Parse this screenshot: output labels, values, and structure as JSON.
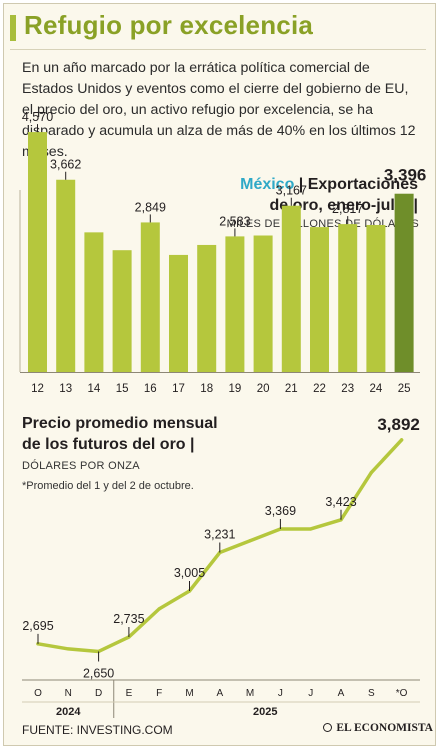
{
  "title": "Refugio por excelencia",
  "intro": "En un año marcado por la errática política comercial de Estados Unidos y eventos como el cierre del gobierno de EU, el precio del oro, un activo refugio por excelencia, se ha disparado y acumula un alza de más de 40% en los últimos 12 meses.",
  "chart1": {
    "heading_country": "México",
    "heading_sep": " | ",
    "heading_rest1": "Exportaciones",
    "heading_rest2": "de oro, enero-julio |",
    "unit": "MILES DE MILLONES DE DÓLARES"
  },
  "chart2": {
    "heading_line1": "Precio promedio mensual",
    "heading_line2": "de los futuros del oro |",
    "unit": "DÓLARES POR ONZA",
    "note": "*Promedio del 1 y del 2 de octubre."
  },
  "source": "FUENTE: INVESTING.COM",
  "brand": "EL ECONOMISTA",
  "colors": {
    "bar": "#b5c73d",
    "bar_highlight": "#6f8e2a",
    "line": "#b5c73d",
    "title": "#8aa126",
    "country": "#2fa9c7"
  },
  "chart_data": [
    {
      "type": "bar",
      "categories": [
        "12",
        "13",
        "14",
        "15",
        "16",
        "17",
        "18",
        "19",
        "20",
        "21",
        "22",
        "23",
        "24",
        "25"
      ],
      "values": [
        4570,
        3662,
        2660,
        2320,
        2849,
        2230,
        2420,
        2583,
        2600,
        3167,
        2760,
        2817,
        2800,
        3396
      ],
      "labels": [
        "4,570",
        "3,662",
        null,
        null,
        "2,849",
        null,
        null,
        "2,583",
        null,
        "3,167",
        null,
        "2,817",
        null,
        "3,396"
      ],
      "highlight_index": 13,
      "title": "México | Exportaciones de oro, enero-julio |",
      "ylabel": "MILES DE MILLONES DE DÓLARES",
      "ylim": [
        0,
        4800
      ],
      "grid": false
    },
    {
      "type": "line",
      "x": [
        "O",
        "N",
        "D",
        "E",
        "F",
        "M",
        "A",
        "M",
        "J",
        "J",
        "A",
        "S",
        "*O"
      ],
      "values": [
        2695,
        2665,
        2650,
        2735,
        2900,
        3005,
        3231,
        3300,
        3369,
        3369,
        3423,
        3700,
        3892
      ],
      "labels": [
        "2,695",
        null,
        "2,650",
        "2,735",
        null,
        "3,005",
        "3,231",
        null,
        "3,369",
        null,
        "3,423",
        null,
        "3,892"
      ],
      "year_groups": [
        {
          "label": "2024",
          "from": 0,
          "to": 2
        },
        {
          "label": "2025",
          "from": 3,
          "to": 12
        }
      ],
      "title": "Precio promedio mensual de los futuros del oro |",
      "ylabel": "DÓLARES POR ONZA",
      "ylim": [
        2600,
        3950
      ],
      "grid": false
    }
  ]
}
